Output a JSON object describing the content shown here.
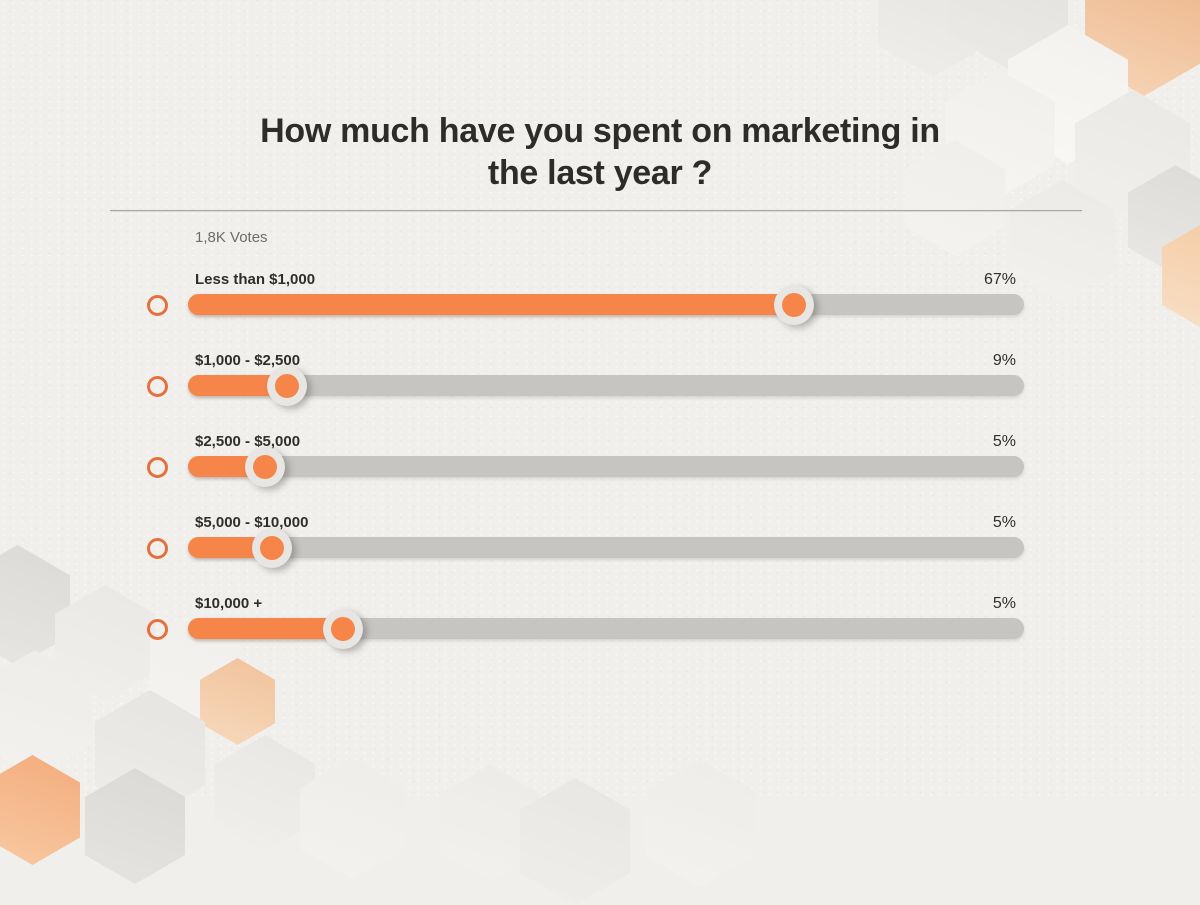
{
  "page": {
    "title_line1": "How much have you spent on marketing in",
    "title_line2": "the last year ?",
    "votes_label": "1,8K Votes"
  },
  "poll": {
    "options": [
      {
        "label": "Less than $1,000",
        "percent": "67%",
        "bar_fill_percent": 72.5
      },
      {
        "label": "$1,000 - $2,500",
        "percent": "9%",
        "bar_fill_percent": 11.8
      },
      {
        "label": "$2,500 - $5,000",
        "percent": "5%",
        "bar_fill_percent": 9.2
      },
      {
        "label": "$5,000 - $10,000",
        "percent": "5%",
        "bar_fill_percent": 10.0
      },
      {
        "label": "$10,000 +",
        "percent": "5%",
        "bar_fill_percent": 18.5
      }
    ]
  },
  "chart_data": {
    "type": "bar",
    "orientation": "horizontal",
    "title": "How much have you spent on marketing in the last year ?",
    "subtitle": "1,8K Votes",
    "categories": [
      "Less than $1,000",
      "$1,000 - $2,500",
      "$2,500 - $5,000",
      "$5,000 - $10,000",
      "$10,000 +"
    ],
    "values": [
      67,
      9,
      5,
      5,
      5
    ],
    "unit": "%",
    "xlim": [
      0,
      100
    ],
    "value_labels_position": "right",
    "legend": "none",
    "grid": false
  },
  "colors": {
    "accent_orange": "#F6854A",
    "radio_orange": "#E4703C",
    "track_gray": "#C7C5C2",
    "handle_ring": "#E8E6E2",
    "background": "#F1EFEC",
    "title_text": "#2D2C2B",
    "muted_text": "#6E6C69",
    "hex_peach": "#F2C09A",
    "hex_gray": "#E3E1DE"
  }
}
